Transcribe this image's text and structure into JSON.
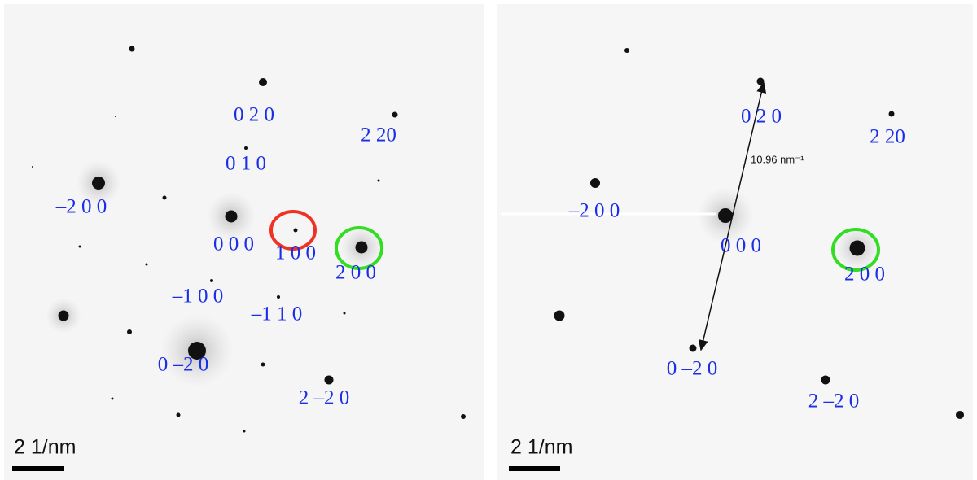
{
  "panels": [
    {
      "labels": [
        "0 2 0",
        "2 20",
        "0 1 0",
        "–2 0 0",
        "0 0 0",
        "1 0 0",
        "2 0 0",
        "–1 0 0",
        "–1 1 0",
        "0 –2 0",
        "2 –2 0"
      ],
      "scale_bar": "2 1/nm"
    },
    {
      "labels": [
        "0 2 0",
        "2 20",
        "–2 0 0",
        "0 0 0",
        "2 0 0",
        "0 –2 0",
        "2 –2 0"
      ],
      "measurement": "10.96 nm⁻¹",
      "scale_bar": "2 1/nm"
    }
  ]
}
